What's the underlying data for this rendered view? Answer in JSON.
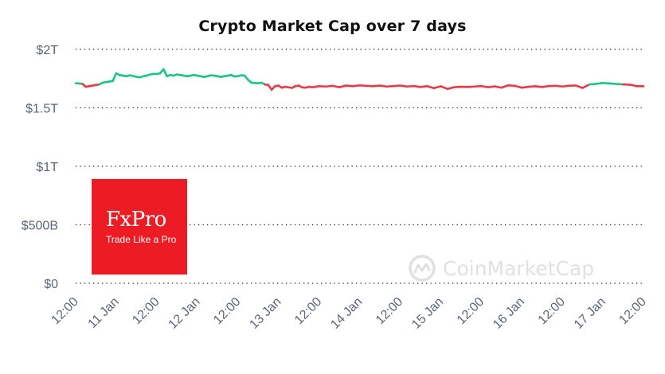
{
  "chart_data": {
    "type": "line",
    "title": "Crypto Market Cap over 7 days",
    "xlabel": "",
    "ylabel": "",
    "ylim": [
      0,
      2000
    ],
    "value_unit": "billion USD",
    "y_ticks": [
      {
        "value": 0,
        "label": "$0"
      },
      {
        "value": 500,
        "label": "$500B"
      },
      {
        "value": 1000,
        "label": "$1T"
      },
      {
        "value": 1500,
        "label": "$1.5T"
      },
      {
        "value": 2000,
        "label": "$2T"
      }
    ],
    "x_ticks": [
      {
        "hour": 0,
        "label": "12:00"
      },
      {
        "hour": 12,
        "label": "11 Jan"
      },
      {
        "hour": 24,
        "label": "12:00"
      },
      {
        "hour": 36,
        "label": "12 Jan"
      },
      {
        "hour": 48,
        "label": "12:00"
      },
      {
        "hour": 60,
        "label": "13 Jan"
      },
      {
        "hour": 72,
        "label": "12:00"
      },
      {
        "hour": 84,
        "label": "14 Jan"
      },
      {
        "hour": 96,
        "label": "12:00"
      },
      {
        "hour": 108,
        "label": "15 Jan"
      },
      {
        "hour": 120,
        "label": "12:00"
      },
      {
        "hour": 132,
        "label": "16 Jan"
      },
      {
        "hour": 144,
        "label": "12:00"
      },
      {
        "hour": 156,
        "label": "17 Jan"
      },
      {
        "hour": 168,
        "label": "12:00"
      }
    ],
    "grid": true,
    "baseline_value": 1700,
    "colors": {
      "above_baseline": "#16c784",
      "below_baseline": "#ea3943"
    },
    "series": [
      {
        "x": [
          0,
          1,
          2,
          3,
          4,
          5,
          6,
          7,
          8,
          9,
          10,
          11,
          12,
          13,
          14,
          15,
          16,
          17,
          18,
          19,
          20,
          21,
          22,
          23,
          24,
          25,
          26,
          27,
          28,
          29,
          30,
          31,
          32,
          33,
          34,
          35,
          36,
          37,
          38,
          39,
          40,
          41,
          42,
          43,
          44,
          45,
          46,
          47,
          48,
          49,
          50,
          51,
          52,
          53,
          54,
          55,
          56,
          57,
          58,
          59,
          60,
          61,
          62,
          63,
          64,
          65,
          66,
          67,
          68,
          69,
          70,
          71,
          72,
          74,
          76,
          78,
          80,
          82,
          84,
          86,
          88,
          90,
          92,
          94,
          96,
          98,
          100,
          102,
          104,
          106,
          108,
          110,
          112,
          114,
          116,
          118,
          120,
          122,
          124,
          126,
          128,
          130,
          132,
          134,
          136,
          138,
          140,
          142,
          144,
          146,
          148,
          150,
          152,
          154,
          156,
          158,
          160,
          162,
          164,
          166,
          168
        ],
        "values": [
          1710,
          1708,
          1705,
          1680,
          1685,
          1690,
          1695,
          1700,
          1715,
          1720,
          1725,
          1730,
          1795,
          1780,
          1775,
          1770,
          1778,
          1772,
          1765,
          1760,
          1770,
          1775,
          1785,
          1790,
          1790,
          1795,
          1830,
          1770,
          1780,
          1775,
          1785,
          1780,
          1775,
          1770,
          1775,
          1780,
          1775,
          1770,
          1765,
          1770,
          1778,
          1775,
          1770,
          1765,
          1770,
          1775,
          1780,
          1768,
          1770,
          1778,
          1775,
          1740,
          1715,
          1712,
          1710,
          1715,
          1700,
          1695,
          1655,
          1685,
          1690,
          1672,
          1680,
          1675,
          1670,
          1685,
          1690,
          1675,
          1672,
          1680,
          1675,
          1680,
          1685,
          1682,
          1688,
          1676,
          1690,
          1685,
          1692,
          1688,
          1685,
          1690,
          1682,
          1686,
          1690,
          1682,
          1686,
          1678,
          1685,
          1668,
          1684,
          1662,
          1676,
          1680,
          1678,
          1682,
          1686,
          1676,
          1683,
          1672,
          1692,
          1688,
          1672,
          1680,
          1684,
          1678,
          1686,
          1688,
          1682,
          1689,
          1690,
          1670,
          1700,
          1705,
          1712,
          1708,
          1704,
          1700,
          1698,
          1685,
          1685
        ]
      }
    ]
  },
  "logo": {
    "name": "FxPro",
    "tagline": "Trade Like a Pro",
    "color": "#ed1c24"
  },
  "watermark": {
    "text": "CoinMarketCap"
  }
}
